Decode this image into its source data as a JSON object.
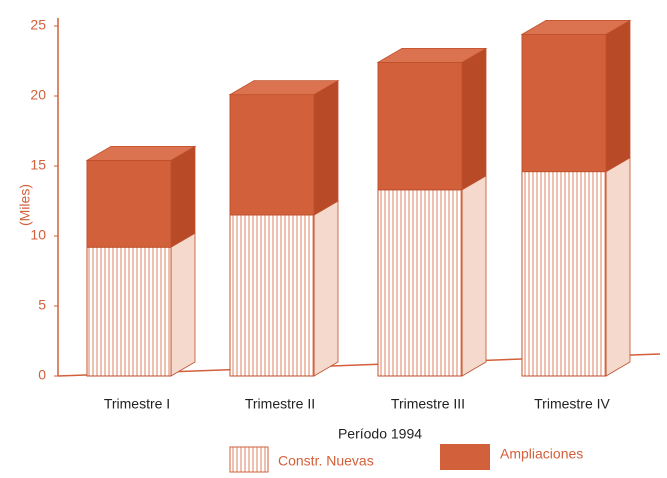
{
  "chart_data": {
    "type": "bar3d_stacked",
    "categories": [
      "Trimestre I",
      "Trimestre II",
      "Trimestre III",
      "Trimestre IV"
    ],
    "series": [
      {
        "name": "Constr. Nuevas",
        "color": "#d2603a",
        "values": [
          9.2,
          11.5,
          13.3,
          14.6
        ]
      },
      {
        "name": "Ampliaciones",
        "color": "#d2603a",
        "values": [
          6.2,
          8.6,
          9.1,
          9.8
        ]
      }
    ],
    "xlabel": "Período 1994",
    "ylabel": "(Miles)",
    "ylim": [
      0,
      25
    ],
    "yticks": [
      0,
      5,
      10,
      15,
      20,
      25
    ]
  }
}
